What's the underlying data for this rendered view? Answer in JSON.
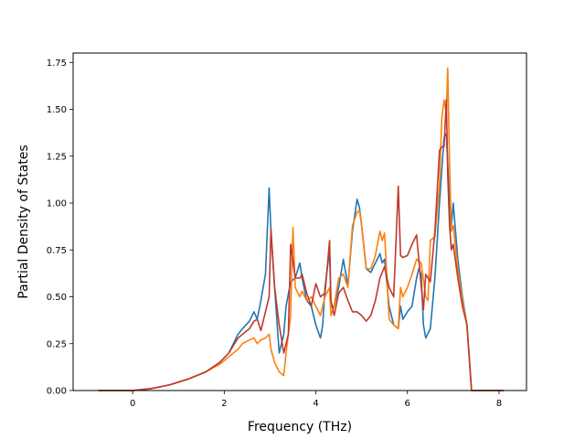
{
  "chart_data": {
    "type": "line",
    "title": "",
    "xlabel": "Frequency (THz)",
    "ylabel": "Partial Density of States",
    "xlim": [
      -1.3,
      8.6
    ],
    "ylim": [
      0.0,
      1.8
    ],
    "xticks": [
      0,
      2,
      4,
      6,
      8
    ],
    "xtick_labels": [
      "0",
      "2",
      "4",
      "6",
      "8"
    ],
    "yticks": [
      0.0,
      0.25,
      0.5,
      0.75,
      1.0,
      1.25,
      1.5,
      1.75
    ],
    "ytick_labels": [
      "0.00",
      "0.25",
      "0.50",
      "0.75",
      "1.00",
      "1.25",
      "1.50",
      "1.75"
    ],
    "grid": false,
    "series": [
      {
        "color": "#1f77b4",
        "x": [
          -0.75,
          0.0,
          0.4,
          0.8,
          1.2,
          1.6,
          1.9,
          2.1,
          2.3,
          2.4,
          2.55,
          2.65,
          2.72,
          2.8,
          2.9,
          2.98,
          3.02,
          3.1,
          3.2,
          3.3,
          3.35,
          3.45,
          3.55,
          3.65,
          3.7,
          3.8,
          3.9,
          4.0,
          4.1,
          4.15,
          4.2,
          4.3,
          4.33,
          4.4,
          4.5,
          4.6,
          4.7,
          4.8,
          4.9,
          4.95,
          5.0,
          5.1,
          5.2,
          5.3,
          5.4,
          5.45,
          5.5,
          5.6,
          5.7,
          5.8,
          5.85,
          5.9,
          6.0,
          6.1,
          6.2,
          6.25,
          6.3,
          6.35,
          6.4,
          6.5,
          6.6,
          6.7,
          6.8,
          6.85,
          6.9,
          6.95,
          7.0,
          7.1,
          7.2,
          7.3,
          7.4,
          8.1
        ],
        "y": [
          0.0,
          0.0,
          0.01,
          0.03,
          0.06,
          0.1,
          0.15,
          0.2,
          0.3,
          0.33,
          0.37,
          0.42,
          0.38,
          0.48,
          0.62,
          1.08,
          0.85,
          0.55,
          0.2,
          0.3,
          0.45,
          0.58,
          0.6,
          0.68,
          0.6,
          0.48,
          0.45,
          0.35,
          0.28,
          0.35,
          0.55,
          0.75,
          0.45,
          0.45,
          0.55,
          0.7,
          0.56,
          0.85,
          1.02,
          0.98,
          0.88,
          0.65,
          0.63,
          0.68,
          0.73,
          0.68,
          0.7,
          0.45,
          0.35,
          0.33,
          0.45,
          0.38,
          0.42,
          0.45,
          0.6,
          0.65,
          0.62,
          0.35,
          0.28,
          0.33,
          0.6,
          1.0,
          1.35,
          1.37,
          1.1,
          0.85,
          1.0,
          0.7,
          0.5,
          0.35,
          0.0,
          0.0
        ]
      },
      {
        "color": "#ff7f0e",
        "x": [
          -0.75,
          0.0,
          0.4,
          0.8,
          1.2,
          1.6,
          1.9,
          2.1,
          2.3,
          2.4,
          2.55,
          2.65,
          2.72,
          2.8,
          2.9,
          2.98,
          3.02,
          3.1,
          3.2,
          3.3,
          3.35,
          3.45,
          3.5,
          3.55,
          3.65,
          3.7,
          3.8,
          3.9,
          4.0,
          4.1,
          4.2,
          4.3,
          4.33,
          4.4,
          4.5,
          4.6,
          4.7,
          4.8,
          4.9,
          4.95,
          5.0,
          5.1,
          5.2,
          5.3,
          5.4,
          5.45,
          5.5,
          5.6,
          5.7,
          5.8,
          5.85,
          5.9,
          6.0,
          6.1,
          6.2,
          6.3,
          6.4,
          6.45,
          6.5,
          6.6,
          6.7,
          6.75,
          6.8,
          6.85,
          6.88,
          6.92,
          6.96,
          7.0,
          7.1,
          7.2,
          7.3,
          7.4,
          8.1
        ],
        "y": [
          0.0,
          0.0,
          0.01,
          0.03,
          0.06,
          0.1,
          0.14,
          0.18,
          0.22,
          0.25,
          0.27,
          0.28,
          0.25,
          0.27,
          0.28,
          0.3,
          0.22,
          0.15,
          0.1,
          0.08,
          0.2,
          0.4,
          0.87,
          0.55,
          0.5,
          0.53,
          0.48,
          0.5,
          0.45,
          0.4,
          0.5,
          0.55,
          0.4,
          0.45,
          0.6,
          0.62,
          0.55,
          0.88,
          0.95,
          0.96,
          0.88,
          0.65,
          0.65,
          0.72,
          0.85,
          0.8,
          0.84,
          0.38,
          0.35,
          0.33,
          0.55,
          0.5,
          0.55,
          0.62,
          0.7,
          0.68,
          0.5,
          0.48,
          0.8,
          0.82,
          1.1,
          1.45,
          1.55,
          1.48,
          1.72,
          1.2,
          0.85,
          0.88,
          0.65,
          0.48,
          0.35,
          0.0,
          0.0
        ]
      },
      {
        "color": "#c0392b",
        "x": [
          -0.75,
          0.0,
          0.4,
          0.8,
          1.2,
          1.6,
          1.9,
          2.1,
          2.3,
          2.4,
          2.55,
          2.65,
          2.72,
          2.8,
          2.9,
          2.98,
          3.02,
          3.1,
          3.2,
          3.3,
          3.4,
          3.45,
          3.55,
          3.65,
          3.7,
          3.8,
          3.9,
          4.0,
          4.1,
          4.2,
          4.3,
          4.33,
          4.4,
          4.5,
          4.6,
          4.7,
          4.8,
          4.9,
          5.0,
          5.1,
          5.2,
          5.3,
          5.4,
          5.5,
          5.6,
          5.7,
          5.8,
          5.85,
          5.9,
          6.0,
          6.1,
          6.2,
          6.3,
          6.35,
          6.4,
          6.5,
          6.6,
          6.7,
          6.75,
          6.8,
          6.85,
          6.88,
          6.92,
          6.96,
          7.0,
          7.1,
          7.2,
          7.3,
          7.4,
          8.1
        ],
        "y": [
          0.0,
          0.0,
          0.01,
          0.03,
          0.06,
          0.1,
          0.15,
          0.2,
          0.28,
          0.3,
          0.33,
          0.37,
          0.38,
          0.32,
          0.42,
          0.5,
          0.86,
          0.55,
          0.35,
          0.2,
          0.3,
          0.78,
          0.6,
          0.6,
          0.62,
          0.52,
          0.45,
          0.57,
          0.5,
          0.52,
          0.8,
          0.48,
          0.4,
          0.52,
          0.55,
          0.48,
          0.42,
          0.42,
          0.4,
          0.37,
          0.4,
          0.48,
          0.6,
          0.66,
          0.55,
          0.5,
          1.09,
          0.72,
          0.71,
          0.72,
          0.78,
          0.83,
          0.56,
          0.43,
          0.62,
          0.58,
          0.85,
          1.28,
          1.3,
          1.3,
          1.55,
          1.15,
          0.88,
          0.75,
          0.78,
          0.6,
          0.45,
          0.35,
          0.0,
          0.0
        ]
      }
    ]
  }
}
